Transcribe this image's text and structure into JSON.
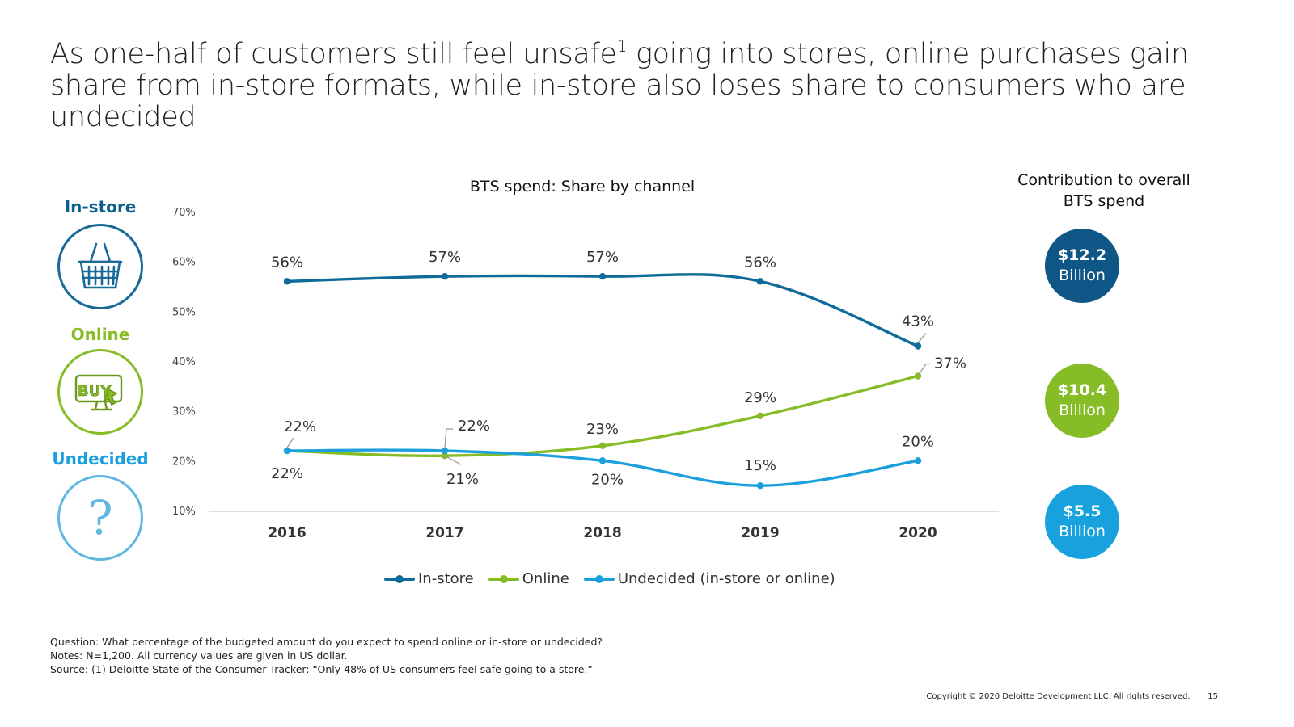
{
  "slide": {
    "title_part1": "As one-half of customers still feel unsafe",
    "title_sup": "1",
    "title_part2": " going into stores, online purchases gain share from in-store formats, while in-store also loses share to consumers who are undecided"
  },
  "side_panel": {
    "instore_label": "In-store",
    "online_label": "Online",
    "online_icon_text": "BUY",
    "undecided_label": "Undecided",
    "undecided_icon_text": "?"
  },
  "contribution": {
    "title_line1": "Contribution to overall",
    "title_line2": "BTS spend",
    "instore_amount": "$12.2",
    "instore_unit": "Billion",
    "online_amount": "$10.4",
    "online_unit": "Billion",
    "undecided_amount": "$5.5",
    "undecided_unit": "Billion"
  },
  "colors": {
    "instore": "#0f6b9a",
    "online": "#86bc25",
    "undecided": "#1ca0dd",
    "instore_bubble": "#0d5686",
    "online_bubble": "#86bc25",
    "undecided_bubble": "#17a2de"
  },
  "chart_data": {
    "type": "line",
    "title": "BTS spend: Share by channel",
    "categories": [
      "2016",
      "2017",
      "2018",
      "2019",
      "2020"
    ],
    "ylim": [
      10,
      70
    ],
    "yticks": [
      "10%",
      "20%",
      "30%",
      "40%",
      "50%",
      "60%",
      "70%"
    ],
    "ytick_values": [
      10,
      20,
      30,
      40,
      50,
      60,
      70
    ],
    "grid": false,
    "legend_position": "bottom",
    "series": [
      {
        "name": "In-store",
        "values": [
          56,
          57,
          57,
          56,
          43
        ],
        "labels": [
          "56%",
          "57%",
          "57%",
          "56%",
          "43%"
        ]
      },
      {
        "name": "Online",
        "values": [
          22,
          21,
          23,
          29,
          37
        ],
        "labels": [
          "22%",
          "21%",
          "23%",
          "29%",
          "37%"
        ]
      },
      {
        "name": "Undecided (in-store or online)",
        "values": [
          22,
          22,
          20,
          15,
          20
        ],
        "labels": [
          "22%",
          "22%",
          "20%",
          "15%",
          "20%"
        ]
      }
    ]
  },
  "notes": {
    "question": "Question: What percentage of the budgeted amount do you expect to spend online or in-store or undecided?",
    "notes": "Notes: N=1,200. All currency values are given in US dollar.",
    "source": "Source: (1) Deloitte State of the Consumer Tracker: “Only 48% of US consumers feel safe going to a store.”"
  },
  "footer": {
    "copyright": "Copyright © 2020 Deloitte Development LLC. All rights reserved.",
    "separator": "|",
    "page_number": "15"
  }
}
